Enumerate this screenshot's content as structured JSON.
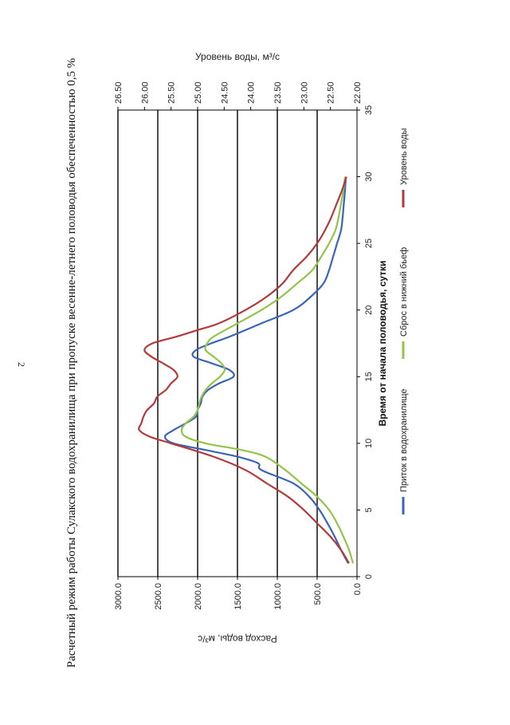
{
  "page_number": "2",
  "chart_data": {
    "type": "line",
    "title": "Расчетный режим работы Сулакского водохранилища при пропуске весенне-летнего половодья обеспеченностью 0,5 %",
    "xlabel": "Время от начала половодья, сутки",
    "ylabel": "Расход воды, м³/с",
    "y2label": "Уровень воды, м³/с",
    "xlim": [
      0,
      35
    ],
    "ylim": [
      0,
      3000
    ],
    "y2lim": [
      22.0,
      26.5
    ],
    "xticks": [
      "0",
      "5",
      "10",
      "15",
      "20",
      "25",
      "30",
      "35"
    ],
    "yticks": [
      "0.0",
      "500.0",
      "1000.0",
      "1500.0",
      "2000.0",
      "2500.0",
      "3000.0"
    ],
    "y2ticks": [
      "22.00",
      "22.50",
      "23.00",
      "23.50",
      "24.00",
      "24.50",
      "25.00",
      "25.50",
      "26.00",
      "26.50"
    ],
    "gridlines_y": [
      500,
      1000,
      1500,
      2000,
      2500,
      3000
    ],
    "legend_position": "bottom",
    "series": [
      {
        "name": "Приток в водохранилище",
        "color": "#3a64b6",
        "axis": "left",
        "x": [
          1,
          2,
          3,
          4,
          5,
          6,
          7,
          8,
          8.5,
          9,
          9.5,
          10,
          10.5,
          11,
          11.5,
          12,
          12.5,
          13,
          13.5,
          14,
          14.5,
          15,
          15.5,
          16,
          16.5,
          17,
          17.5,
          18,
          19,
          20,
          21,
          22,
          23,
          24,
          25,
          26,
          27,
          28,
          29,
          30
        ],
        "values": [
          110,
          200,
          280,
          370,
          470,
          600,
          800,
          1200,
          1240,
          1500,
          1900,
          2300,
          2410,
          2300,
          2150,
          2020,
          2000,
          1960,
          1940,
          1870,
          1730,
          1550,
          1600,
          1820,
          2050,
          2020,
          1830,
          1600,
          1200,
          800,
          580,
          420,
          350,
          300,
          250,
          200,
          180,
          165,
          150,
          140
        ]
      },
      {
        "name": "Сброс в нижний бьеф",
        "color": "#94c34a",
        "axis": "left",
        "x": [
          1,
          2,
          3,
          4,
          5,
          6,
          7,
          8,
          9,
          9.5,
          10,
          10.5,
          11,
          11.5,
          12,
          12.5,
          13,
          13.5,
          14,
          14.5,
          15,
          15.5,
          16,
          16.5,
          17,
          17.5,
          18,
          19,
          20,
          21,
          22,
          23,
          24,
          25,
          26,
          27,
          28,
          29,
          30
        ],
        "values": [
          50,
          100,
          170,
          250,
          350,
          500,
          700,
          900,
          1150,
          1450,
          1900,
          2150,
          2200,
          2150,
          2050,
          2000,
          1980,
          1950,
          1900,
          1820,
          1720,
          1660,
          1700,
          1800,
          1900,
          1880,
          1800,
          1500,
          1200,
          950,
          750,
          560,
          450,
          350,
          270,
          230,
          200,
          170,
          150
        ]
      },
      {
        "name": "Уровень воды",
        "color": "#b23a3a",
        "axis": "right",
        "x": [
          1,
          2,
          3,
          4,
          5,
          6,
          7,
          8,
          9,
          10,
          10.5,
          11,
          11.5,
          12,
          12.5,
          13,
          13.5,
          14,
          14.5,
          15,
          15.5,
          16,
          16.5,
          17,
          17.5,
          18,
          18.5,
          19,
          20,
          21,
          22,
          23,
          24,
          25,
          26,
          27,
          28,
          29,
          30
        ],
        "values": [
          22.15,
          22.3,
          22.5,
          22.75,
          23.0,
          23.3,
          23.7,
          24.1,
          24.7,
          25.5,
          25.9,
          26.1,
          26.06,
          26.02,
          25.95,
          25.82,
          25.76,
          25.6,
          25.5,
          25.38,
          25.45,
          25.65,
          25.87,
          26.0,
          25.85,
          25.4,
          25.0,
          24.6,
          24.1,
          23.7,
          23.4,
          23.2,
          22.95,
          22.75,
          22.6,
          22.48,
          22.38,
          22.28,
          22.2
        ]
      }
    ]
  }
}
